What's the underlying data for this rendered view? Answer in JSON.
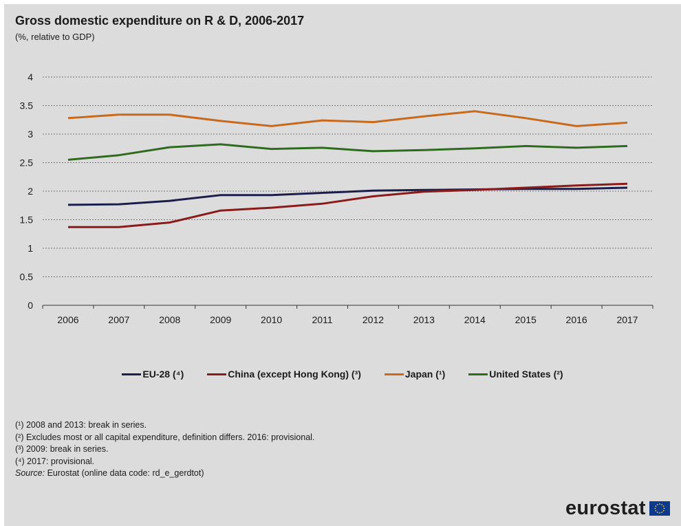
{
  "chart_data": {
    "type": "line",
    "title": "Gross domestic expenditure on R & D, 2006-2017",
    "subtitle": "(%, relative to GDP)",
    "x": [
      "2006",
      "2007",
      "2008",
      "2009",
      "2010",
      "2011",
      "2012",
      "2013",
      "2014",
      "2015",
      "2016",
      "2017"
    ],
    "ylim": [
      0,
      4
    ],
    "yticks": [
      "0",
      "0.5",
      "1",
      "1.5",
      "2",
      "2.5",
      "3",
      "3.5",
      "4"
    ],
    "grid": true,
    "legend_position": "bottom",
    "series": [
      {
        "name": "EU-28 (⁴)",
        "color": "#1b1e4b",
        "values": [
          1.76,
          1.77,
          1.83,
          1.93,
          1.93,
          1.97,
          2.01,
          2.02,
          2.03,
          2.04,
          2.04,
          2.06
        ]
      },
      {
        "name": "China (except Hong Kong) (³)",
        "color": "#8b1a1a",
        "values": [
          1.37,
          1.37,
          1.45,
          1.66,
          1.71,
          1.78,
          1.91,
          1.99,
          2.02,
          2.06,
          2.1,
          2.13
        ]
      },
      {
        "name": "Japan (¹)",
        "color": "#c8691b",
        "values": [
          3.28,
          3.34,
          3.34,
          3.23,
          3.14,
          3.24,
          3.21,
          3.31,
          3.4,
          3.28,
          3.14,
          3.2
        ]
      },
      {
        "name": "United States (²)",
        "color": "#2e6b1e",
        "values": [
          2.55,
          2.63,
          2.77,
          2.82,
          2.74,
          2.76,
          2.7,
          2.72,
          2.75,
          2.79,
          2.76,
          2.79
        ]
      }
    ]
  },
  "notes": [
    "(¹) 2008 and 2013: break in series.",
    "(²) Excludes most or all capital expenditure, definition differs. 2016: provisional.",
    "(³) 2009: break in series.",
    "(⁴) 2017: provisional."
  ],
  "source": {
    "label": "Source:",
    "text": "Eurostat (online data code: rd_e_gerdtot)"
  },
  "logo": {
    "text": "eurostat",
    "flag_icon": "eu-flag-icon"
  }
}
